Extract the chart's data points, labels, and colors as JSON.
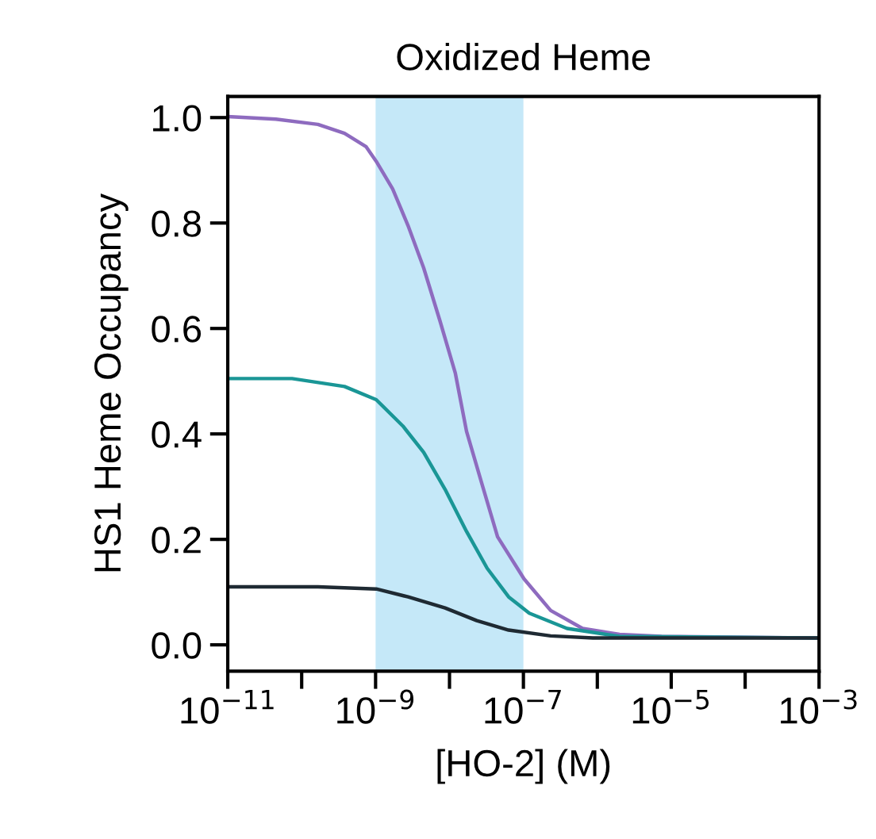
{
  "chart_data": {
    "type": "line",
    "title": "Oxidized Heme",
    "xlabel": "[HO-2] (M)",
    "ylabel": "HS1 Heme Occupancy",
    "log": "x",
    "grid": false,
    "line_style": "solid",
    "marker": "none",
    "xlim": [
      1e-11,
      0.001
    ],
    "ylim": [
      -0.05,
      1.04
    ],
    "xticks": [
      {
        "value": 1e-11,
        "label": "10$^{−11}$"
      },
      {
        "value": 1e-10,
        "label": null
      },
      {
        "value": 1e-09,
        "label": "10$^{−9}$"
      },
      {
        "value": 1e-08,
        "label": null
      },
      {
        "value": 1e-07,
        "label": "10$^{−7}$"
      },
      {
        "value": 1e-06,
        "label": null
      },
      {
        "value": 1e-05,
        "label": "10$^{−5}$"
      },
      {
        "value": 0.0001,
        "label": null
      },
      {
        "value": 0.001,
        "label": "10$^{−3}$"
      }
    ],
    "yticks": [
      {
        "value": 0,
        "label": "0.0"
      },
      {
        "value": 0.2,
        "label": "0.2"
      },
      {
        "value": 0.4,
        "label": "0.4"
      },
      {
        "value": 0.6,
        "label": "0.6"
      },
      {
        "value": 0.8,
        "label": "0.8"
      },
      {
        "value": 1,
        "label": "1.0"
      }
    ],
    "bands": [
      {
        "axis": "x",
        "from": 1e-09,
        "to": 1e-07,
        "color": "#c5e8f8"
      }
    ],
    "series": [
      {
        "color": "#8e6bbf",
        "x": [
          1e-11,
          4.47e-11,
          1.66e-10,
          3.8e-10,
          7.41e-10,
          1.02e-09,
          1.7e-09,
          2.75e-09,
          4.47e-09,
          7.41e-09,
          1.2e-08,
          1.7e-08,
          2.75e-08,
          4.47e-08,
          1.02e-07,
          2.34e-07,
          6.31e-07,
          2e-06,
          7.41e-06,
          0.001
        ],
        "values": [
          1.002,
          0.997,
          0.987,
          0.97,
          0.945,
          0.917,
          0.865,
          0.795,
          0.715,
          0.615,
          0.515,
          0.405,
          0.305,
          0.205,
          0.125,
          0.065,
          0.031,
          0.02,
          0.016,
          0.013
        ]
      },
      {
        "color": "#1a9696",
        "x": [
          1e-11,
          7.41e-11,
          3.8e-10,
          1.02e-09,
          2.34e-09,
          4.47e-09,
          8.71e-09,
          1.7e-08,
          3.24e-08,
          6.31e-08,
          1.2e-07,
          3.89e-07,
          2e-06,
          0.001
        ],
        "values": [
          0.505,
          0.505,
          0.49,
          0.465,
          0.415,
          0.365,
          0.295,
          0.215,
          0.145,
          0.091,
          0.06,
          0.031,
          0.016,
          0.013
        ]
      },
      {
        "color": "#1f2a33",
        "x": [
          1e-11,
          1.66e-10,
          1.02e-09,
          2.75e-09,
          8.71e-09,
          2.34e-08,
          6.31e-08,
          2.34e-07,
          8.71e-07,
          0.001
        ],
        "values": [
          0.11,
          0.11,
          0.106,
          0.091,
          0.07,
          0.046,
          0.028,
          0.017,
          0.013,
          0.013
        ]
      }
    ]
  }
}
